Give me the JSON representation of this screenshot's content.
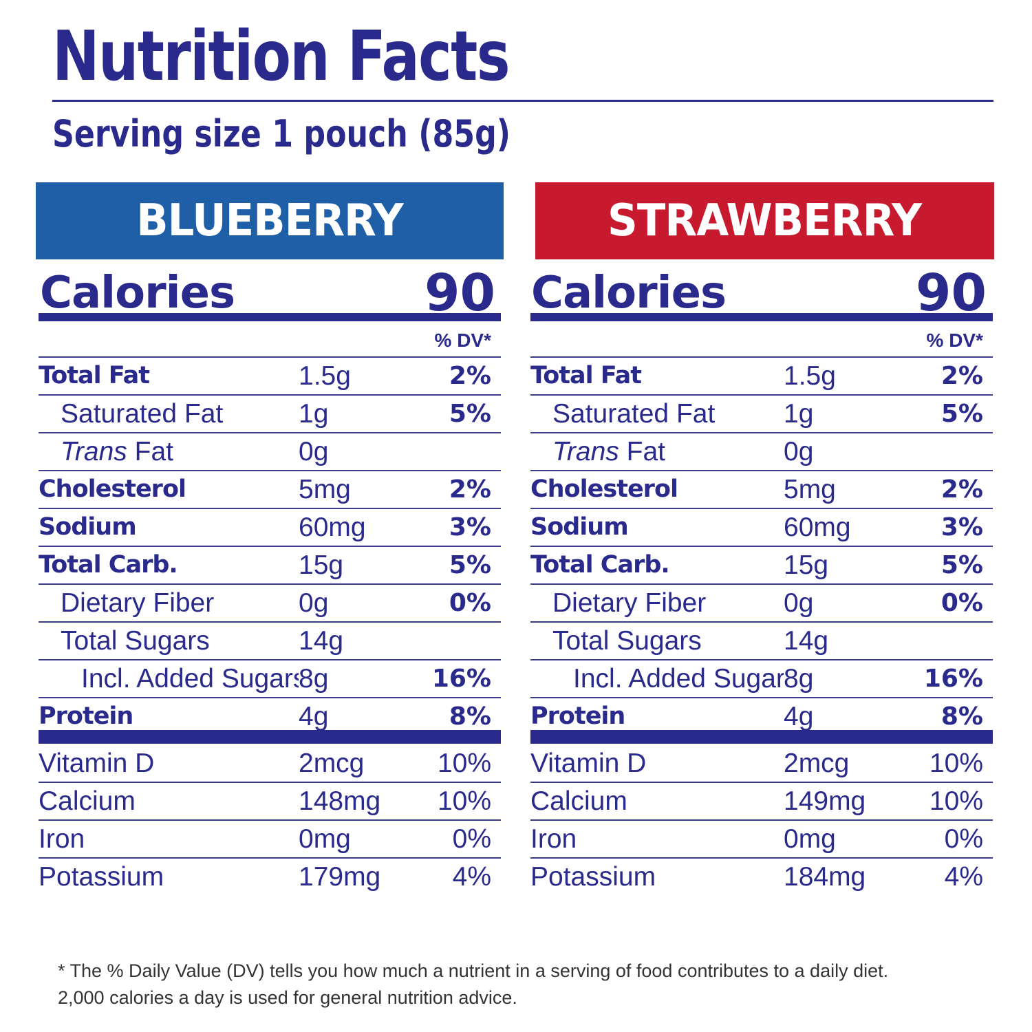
{
  "title": "Nutrition Facts",
  "serving_size": "Serving size 1 pouch (85g)",
  "colors": {
    "navy": "#2a2a8c",
    "blueberry_header": "#1f5fa8",
    "strawberry_header": "#c81a2e"
  },
  "panels": [
    {
      "flavor": "BLUEBERRY",
      "calories_label": "Calories",
      "calories_value": "90",
      "dv_header": "% DV*",
      "nutrients": [
        {
          "pre": "",
          "name": "Total Fat",
          "amount": "1.5g",
          "dv": "2%"
        },
        {
          "pre": "",
          "name": "Saturated Fat",
          "amount": "1g",
          "dv": "5%"
        },
        {
          "pre": "Trans",
          "name": " Fat",
          "amount": "0g",
          "dv": ""
        },
        {
          "pre": "",
          "name": "Cholesterol",
          "amount": "5mg",
          "dv": "2%"
        },
        {
          "pre": "",
          "name": "Sodium",
          "amount": "60mg",
          "dv": "3%"
        },
        {
          "pre": "",
          "name": "Total Carb.",
          "amount": "15g",
          "dv": "5%"
        },
        {
          "pre": "",
          "name": "Dietary Fiber",
          "amount": "0g",
          "dv": "0%"
        },
        {
          "pre": "",
          "name": "Total Sugars",
          "amount": "14g",
          "dv": ""
        },
        {
          "pre": "",
          "name": "Incl. Added Sugars",
          "amount": "8g",
          "dv": "16%"
        },
        {
          "pre": "",
          "name": "Protein",
          "amount": "4g",
          "dv": "8%"
        }
      ],
      "vitamins": [
        {
          "name": "Vitamin D",
          "amount": "2mcg",
          "dv": "10%"
        },
        {
          "name": "Calcium",
          "amount": "148mg",
          "dv": "10%"
        },
        {
          "name": "Iron",
          "amount": "0mg",
          "dv": "0%"
        },
        {
          "name": "Potassium",
          "amount": "179mg",
          "dv": "4%"
        }
      ]
    },
    {
      "flavor": "STRAWBERRY",
      "calories_label": "Calories",
      "calories_value": "90",
      "dv_header": "% DV*",
      "nutrients": [
        {
          "pre": "",
          "name": "Total Fat",
          "amount": "1.5g",
          "dv": "2%"
        },
        {
          "pre": "",
          "name": "Saturated Fat",
          "amount": "1g",
          "dv": "5%"
        },
        {
          "pre": "Trans",
          "name": " Fat",
          "amount": "0g",
          "dv": ""
        },
        {
          "pre": "",
          "name": "Cholesterol",
          "amount": "5mg",
          "dv": "2%"
        },
        {
          "pre": "",
          "name": "Sodium",
          "amount": "60mg",
          "dv": "3%"
        },
        {
          "pre": "",
          "name": "Total Carb.",
          "amount": "15g",
          "dv": "5%"
        },
        {
          "pre": "",
          "name": "Dietary Fiber",
          "amount": "0g",
          "dv": "0%"
        },
        {
          "pre": "",
          "name": "Total Sugars",
          "amount": "14g",
          "dv": ""
        },
        {
          "pre": "",
          "name": "Incl. Added Sugars",
          "amount": "8g",
          "dv": "16%"
        },
        {
          "pre": "",
          "name": "Protein",
          "amount": "4g",
          "dv": "8%"
        }
      ],
      "vitamins": [
        {
          "name": "Vitamin D",
          "amount": "2mcg",
          "dv": "10%"
        },
        {
          "name": "Calcium",
          "amount": "149mg",
          "dv": "10%"
        },
        {
          "name": "Iron",
          "amount": "0mg",
          "dv": "0%"
        },
        {
          "name": "Potassium",
          "amount": "184mg",
          "dv": "4%"
        }
      ]
    }
  ],
  "footnote": {
    "line1": "* The % Daily Value (DV) tells you how much a nutrient in a serving of food contributes to a daily diet.",
    "line2": "2,000 calories a day is used for general nutrition advice."
  }
}
